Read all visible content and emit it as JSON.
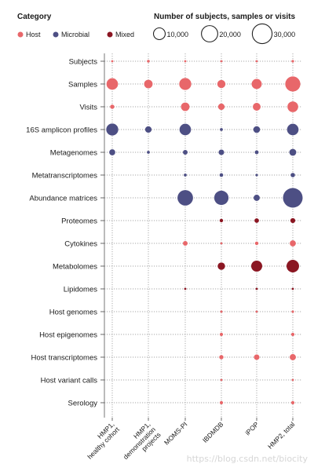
{
  "chart_data": {
    "type": "scatter",
    "legend": {
      "category_title": "Category",
      "categories": [
        {
          "key": "host",
          "label": "Host",
          "color": "#E8676A"
        },
        {
          "key": "microbial",
          "label": "Microbial",
          "color": "#4D4F84"
        },
        {
          "key": "mixed",
          "label": "Mixed",
          "color": "#8B1622"
        }
      ],
      "size_title": "Number of subjects, samples or visits",
      "size_values": [
        10000,
        20000,
        30000
      ],
      "size_labels": [
        "10,000",
        "20,000",
        "30,000"
      ]
    },
    "columns": [
      "HMP1,\nhealthy cohort",
      "HMP1,\ndemonstration\nprojects",
      "MOMS-PI",
      "IBDMDB",
      "iPOP",
      "HMP2, total"
    ],
    "rows": [
      "Subjects",
      "Samples",
      "Visits",
      "16S amplicon profiles",
      "Metagenomes",
      "Metatranscriptomes",
      "Abundance matrices",
      "Proteomes",
      "Cytokines",
      "Metabolomes",
      "Lipidomes",
      "Host genomes",
      "Host epigenomes",
      "Host transcriptomes",
      "Host variant calls",
      "Serology"
    ],
    "row_category": [
      "host",
      "host",
      "host",
      "microbial",
      "microbial",
      "microbial",
      "microbial",
      "mixed",
      "host",
      "mixed",
      "mixed",
      "host",
      "host",
      "host",
      "host",
      "host"
    ],
    "values": [
      [
        300,
        600,
        300,
        130,
        110,
        550
      ],
      [
        11000,
        6000,
        12000,
        5500,
        8500,
        19000
      ],
      [
        1500,
        0,
        6000,
        3500,
        5000,
        9500
      ],
      [
        12000,
        3500,
        11000,
        700,
        3800,
        11000
      ],
      [
        3000,
        700,
        1800,
        2500,
        1200,
        4000
      ],
      [
        0,
        0,
        700,
        1100,
        500,
        1600
      ],
      [
        0,
        0,
        20000,
        17000,
        3200,
        32000
      ],
      [
        0,
        0,
        0,
        1000,
        1700,
        2000
      ],
      [
        0,
        0,
        1800,
        300,
        1000,
        3000
      ],
      [
        0,
        0,
        0,
        4500,
        10000,
        13000
      ],
      [
        0,
        0,
        150,
        0,
        150,
        300
      ],
      [
        0,
        0,
        0,
        450,
        200,
        500
      ],
      [
        0,
        0,
        0,
        900,
        0,
        900
      ],
      [
        0,
        0,
        0,
        1500,
        2500,
        3200
      ],
      [
        0,
        0,
        0,
        300,
        0,
        300
      ],
      [
        0,
        0,
        0,
        900,
        0,
        900
      ]
    ]
  },
  "watermark": "https://blog.csdn.net/biocity"
}
